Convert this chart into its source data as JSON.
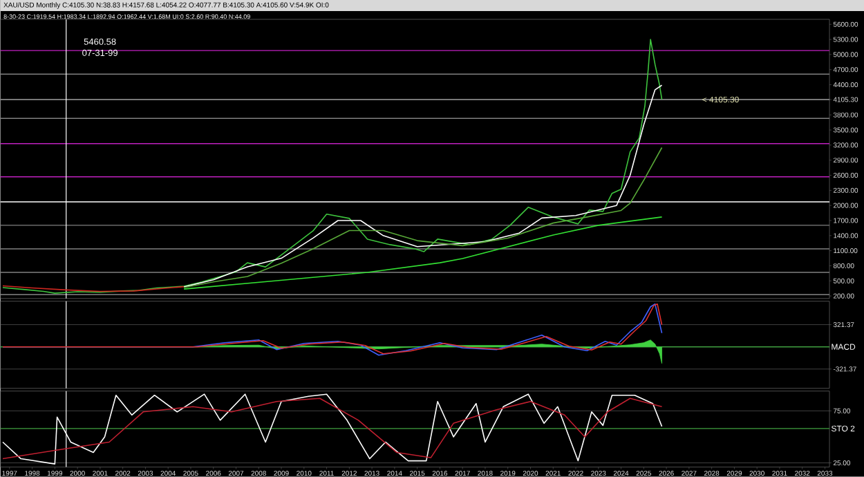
{
  "chart_data": [
    {
      "type": "line",
      "title": "XAU/USD Monthly C:4105.30 N:38.83 H:4157.68 L:4054.22 O:4077.77 B:4105.30 A:4105.60 V:54.9K OI:0",
      "subtitle": "8-30-23 C:1919.54 H:1983.34 L:1892.94 O:1962.44 V:1.68M UI:0 S:2.60 R:90.40 N:44.09",
      "annotations": [
        "5460.58",
        "07-31-99",
        {
          "text": "< 4105.30",
          "x": 2027.5,
          "y": 4105.3
        }
      ],
      "xlim": [
        1996.6,
        2033.2
      ],
      "ylim": [
        150,
        5700
      ],
      "tick_labels": "y",
      "yticks": [
        {
          "value": 5600,
          "label": "5600.00"
        },
        {
          "value": 5300,
          "label": "5300.00"
        },
        {
          "value": 5000,
          "label": "5000.00"
        },
        {
          "value": 4700,
          "label": "4700.00"
        },
        {
          "value": 4400,
          "label": "4400.00"
        },
        {
          "value": 4105.3,
          "label": "4105.30"
        },
        {
          "value": 3800,
          "label": "3800.00"
        },
        {
          "value": 3500,
          "label": "3500.00"
        },
        {
          "value": 3200,
          "label": "3200.00"
        },
        {
          "value": 2900,
          "label": "2900.00"
        },
        {
          "value": 2600,
          "label": "2600.00"
        },
        {
          "value": 2300,
          "label": "2300.00"
        },
        {
          "value": 2000,
          "label": "2000.00"
        },
        {
          "value": 1700,
          "label": "1700.00"
        },
        {
          "value": 1400,
          "label": "1400.00"
        },
        {
          "value": 1100,
          "label": "1100.00"
        },
        {
          "value": 800,
          "label": "800.00"
        },
        {
          "value": 500,
          "label": "500.00"
        },
        {
          "value": 200,
          "label": "200.00"
        }
      ],
      "series": [
        {
          "color": "#3ec43e",
          "x": [
            1996.7,
            1997.6,
            1998.5,
            1999.0,
            2000.0,
            2001.0,
            2002.0,
            2002.7,
            2003.5,
            2004.7,
            2005.5,
            2006.3,
            2007.0,
            2007.5,
            2008.3,
            2009.2,
            2010.4,
            2011.0,
            2012.0,
            2012.8,
            2013.8,
            2014.9,
            2015.3,
            2015.9,
            2017.3,
            2018.3,
            2019.1,
            2019.9,
            2021.0,
            2022.1,
            2022.6,
            2023.2,
            2023.6,
            2024.0,
            2024.4,
            2024.8,
            2025.05,
            2025.2,
            2025.3,
            2025.5,
            2025.7,
            2025.8
          ],
          "values": [
            366,
            330,
            290,
            255,
            285,
            275,
            300,
            310,
            360,
            393,
            480,
            586,
            680,
            860,
            777,
            1082,
            1495,
            1826,
            1743,
            1330,
            1220,
            1137,
            1082,
            1330,
            1220,
            1330,
            1605,
            1963,
            1770,
            1633,
            1908,
            1880,
            2240,
            2322,
            3065,
            3340,
            3975,
            4720,
            5300,
            4800,
            4390,
            4105.3
          ]
        },
        {
          "color": "#d02820",
          "x": [
            1996.7,
            1998.0,
            1999.5,
            2001.0,
            2002.5,
            2004.0,
            2004.7
          ],
          "values": [
            400,
            360,
            320,
            290,
            300,
            360,
            385
          ]
        },
        {
          "color": "#ffffff",
          "x": [
            2004.7,
            2006.0,
            2007.5,
            2009.0,
            2010.4,
            2011.5,
            2012.5,
            2013.5,
            2015.0,
            2016.5,
            2018.0,
            2019.5,
            2020.5,
            2022.0,
            2023.8,
            2024.4,
            2025.0,
            2025.5,
            2025.8
          ],
          "values": [
            380,
            520,
            780,
            950,
            1350,
            1700,
            1700,
            1400,
            1180,
            1230,
            1280,
            1450,
            1750,
            1800,
            2000,
            2600,
            3600,
            4300,
            4390
          ]
        },
        {
          "color": "#58a838",
          "x": [
            2004.7,
            2006.0,
            2007.5,
            2009.0,
            2010.4,
            2012.0,
            2013.5,
            2015.0,
            2017.0,
            2019.0,
            2021.0,
            2022.5,
            2024.0,
            2024.4,
            2025.0,
            2025.8
          ],
          "values": [
            366,
            480,
            586,
            850,
            1137,
            1500,
            1500,
            1300,
            1200,
            1350,
            1650,
            1770,
            1900,
            2046,
            2500,
            3150
          ]
        },
        {
          "color": "#33e033",
          "x": [
            2004.7,
            2008.8,
            2012.8,
            2016.0,
            2017.0,
            2021.0,
            2023.0,
            2025.8
          ],
          "values": [
            338,
            503,
            669,
            860,
            944,
            1412,
            1605,
            1770
          ]
        }
      ],
      "ref_lines": [
        {
          "axis": "y",
          "value": 5080,
          "color": "#c020c0"
        },
        {
          "axis": "y",
          "value": 4610,
          "color": "#808080"
        },
        {
          "axis": "y",
          "value": 4105.3,
          "color": "#a0a0a0"
        },
        {
          "axis": "y",
          "value": 3730,
          "color": "#808080"
        },
        {
          "axis": "y",
          "value": 3230,
          "color": "#c020c0"
        },
        {
          "axis": "y",
          "value": 2570,
          "color": "#c020c0"
        },
        {
          "axis": "y",
          "value": 2070,
          "color": "#ffffff"
        },
        {
          "axis": "y",
          "value": 1605,
          "color": "#808080"
        },
        {
          "axis": "y",
          "value": 1137,
          "color": "#808080"
        },
        {
          "axis": "y",
          "value": 669,
          "color": "#808080"
        },
        {
          "axis": "y",
          "value": 227,
          "color": "#a0a0a0"
        },
        {
          "axis": "x",
          "value": 1999.5,
          "color": "#ffffff"
        }
      ]
    },
    {
      "type": "line",
      "xlim": [
        1996.6,
        2033.2
      ],
      "ylim": [
        -600,
        660
      ],
      "tick_labels": "y",
      "grid": "y",
      "yticks": [
        {
          "value": 321.37,
          "label": "321.37"
        },
        {
          "value": -321.37,
          "label": "-321.37"
        }
      ],
      "series": [
        {
          "type": "area",
          "color": "#40d040",
          "x": [
            1996.7,
            2005.0,
            2006.5,
            2008.0,
            2008.8,
            2010.0,
            2013.3,
            2016.0,
            2019.5,
            2020.5,
            2022.5,
            2024.4,
            2025.0,
            2025.3,
            2025.5,
            2025.7,
            2025.8
          ],
          "values": [
            0,
            0,
            20,
            25,
            -30,
            15,
            -30,
            20,
            20,
            40,
            -20,
            30,
            60,
            100,
            40,
            -100,
            -240
          ]
        },
        {
          "color": "#4060ff",
          "x": [
            1996.7,
            2005.1,
            2006.5,
            2008.0,
            2008.8,
            2010.0,
            2011.5,
            2012.5,
            2013.3,
            2014.5,
            2016.0,
            2017.0,
            2018.5,
            2019.5,
            2020.5,
            2021.5,
            2022.5,
            2023.3,
            2023.8,
            2024.4,
            2024.9,
            2025.3,
            2025.5,
            2025.8
          ],
          "values": [
            0,
            0,
            60,
            100,
            -40,
            50,
            80,
            25,
            -120,
            -55,
            60,
            -15,
            -40,
            65,
            170,
            0,
            -55,
            80,
            25,
            220,
            350,
            580,
            620,
            200
          ]
        },
        {
          "color": "#e03030",
          "x": [
            1996.7,
            2005.3,
            2006.8,
            2008.2,
            2009.0,
            2010.2,
            2011.7,
            2012.7,
            2013.5,
            2014.7,
            2016.2,
            2017.2,
            2018.7,
            2019.7,
            2020.7,
            2021.7,
            2022.7,
            2023.5,
            2024.0,
            2024.6,
            2025.1,
            2025.45,
            2025.6,
            2025.8
          ],
          "values": [
            0,
            0,
            50,
            90,
            -20,
            40,
            70,
            20,
            -100,
            -60,
            50,
            -5,
            -35,
            55,
            150,
            10,
            -45,
            70,
            40,
            230,
            380,
            600,
            620,
            320
          ]
        }
      ],
      "ref_lines": [
        {
          "axis": "y",
          "value": 0,
          "label": "MACD",
          "color": "#40a040"
        },
        {
          "axis": "x",
          "value": 1999.5,
          "color": "#ffffff"
        }
      ]
    },
    {
      "type": "line",
      "xlim": [
        1996.6,
        2033.2
      ],
      "ylim": [
        21,
        94
      ],
      "grid": "y",
      "yticks": [
        {
          "value": 75,
          "label": "75.00"
        },
        {
          "value": 25,
          "label": "25.00"
        }
      ],
      "xticks": [
        1997,
        1998,
        1999,
        2000,
        2001,
        2002,
        2003,
        2004,
        2005,
        2006,
        2007,
        2008,
        2009,
        2010,
        2011,
        2012,
        2013,
        2014,
        2015,
        2016,
        2017,
        2018,
        2019,
        2020,
        2021,
        2022,
        2023,
        2024,
        2025,
        2026,
        2027,
        2028,
        2029,
        2030,
        2031,
        2032,
        2033
      ],
      "series": [
        {
          "color": "#ffffff",
          "x": [
            1996.7,
            1997.5,
            1999.0,
            1999.1,
            1999.7,
            2000.7,
            2001.2,
            2001.7,
            2002.4,
            2003.4,
            2004.4,
            2005.6,
            2006.3,
            2007.4,
            2008.3,
            2009.0,
            2010.2,
            2011.0,
            2011.9,
            2012.9,
            2013.6,
            2014.6,
            2015.4,
            2015.9,
            2016.6,
            2017.6,
            2018.0,
            2018.8,
            2019.9,
            2020.6,
            2021.2,
            2022.1,
            2022.7,
            2023.2,
            2023.6,
            2024.6,
            2025.4,
            2025.8
          ],
          "values": [
            45,
            29,
            24,
            69,
            45,
            35,
            50,
            90,
            71,
            90,
            74,
            91,
            66,
            91,
            45,
            84,
            89,
            91,
            66,
            29,
            45,
            27,
            27,
            84,
            50,
            82,
            45,
            79,
            91,
            63,
            79,
            27,
            74,
            61,
            90,
            90,
            82,
            60
          ]
        },
        {
          "color": "#c02030",
          "x": [
            1996.7,
            1999.0,
            2001.4,
            2002.9,
            2005.1,
            2006.8,
            2008.8,
            2010.7,
            2012.4,
            2014.1,
            2015.6,
            2016.6,
            2018.5,
            2020.0,
            2021.5,
            2022.4,
            2023.4,
            2024.4,
            2025.8
          ],
          "values": [
            29,
            37,
            45,
            74,
            79,
            74,
            84,
            87,
            66,
            35,
            30,
            63,
            76,
            84,
            71,
            50,
            74,
            87,
            79
          ]
        }
      ],
      "ref_lines": [
        {
          "axis": "y",
          "value": 58,
          "label": "STO 2",
          "color": "#40a040"
        },
        {
          "axis": "x",
          "value": 1999.5,
          "color": "#ffffff"
        }
      ]
    }
  ]
}
